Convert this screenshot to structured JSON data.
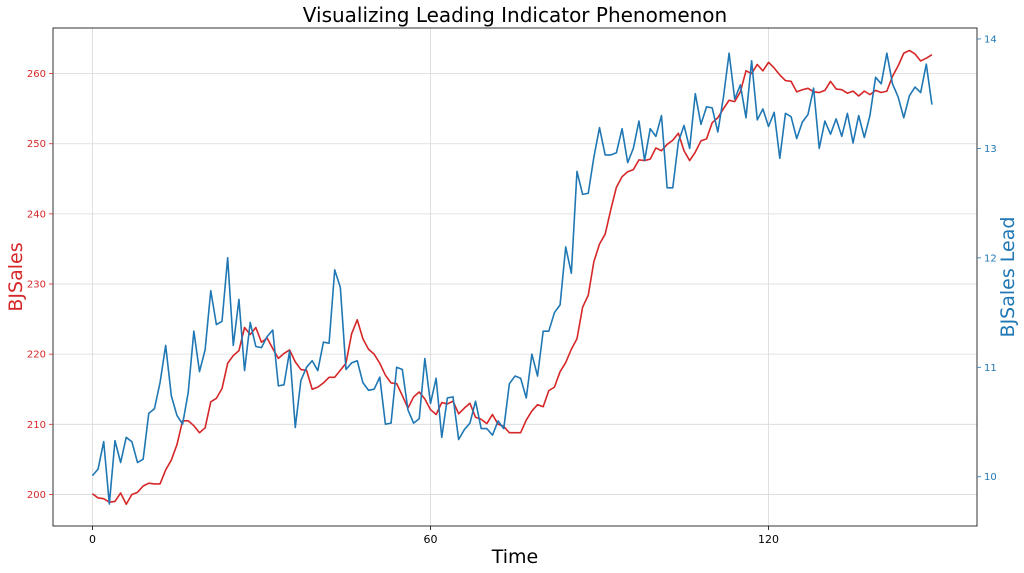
{
  "chart_data": {
    "type": "line",
    "title": "Visualizing Leading Indicator Phenomenon",
    "xlabel": "Time",
    "ylabel_left": "BJSales",
    "ylabel_right": "BJSales Lead",
    "xlim": [
      -7,
      157
    ],
    "ylim_left": [
      195.5,
      266.5
    ],
    "ylim_right": [
      9.55,
      14.1
    ],
    "x_ticks": [
      0,
      60,
      120
    ],
    "y_ticks_left": [
      200,
      210,
      220,
      230,
      240,
      250,
      260
    ],
    "y_ticks_right": [
      10,
      11,
      12,
      13,
      14
    ],
    "grid": true,
    "colors": {
      "left": "#d62728",
      "right": "#1f77b4"
    },
    "series": [
      {
        "name": "BJSales",
        "axis": "left",
        "values": [
          200.1,
          199.5,
          199.4,
          198.9,
          199.0,
          200.2,
          198.6,
          200.0,
          200.3,
          201.2,
          201.6,
          201.5,
          201.5,
          203.5,
          204.9,
          207.1,
          210.5,
          210.5,
          209.8,
          208.8,
          209.5,
          213.2,
          213.7,
          215.1,
          218.7,
          219.8,
          220.5,
          223.8,
          222.8,
          223.8,
          221.7,
          222.3,
          220.8,
          219.4,
          220.1,
          220.6,
          218.9,
          217.8,
          217.7,
          215.0,
          215.3,
          215.9,
          216.7,
          216.7,
          217.7,
          218.7,
          222.9,
          224.9,
          222.2,
          220.7,
          220.0,
          218.7,
          217.0,
          215.9,
          215.8,
          214.1,
          212.3,
          213.9,
          214.6,
          213.6,
          212.1,
          211.4,
          213.1,
          212.9,
          213.3,
          211.5,
          212.3,
          213.0,
          211.0,
          210.7,
          210.1,
          211.4,
          210.0,
          209.7,
          208.8,
          208.8,
          208.8,
          210.6,
          211.9,
          212.8,
          212.5,
          214.8,
          215.3,
          217.5,
          218.8,
          220.7,
          222.2,
          226.7,
          228.4,
          233.2,
          235.7,
          237.1,
          240.6,
          243.8,
          245.3,
          246.0,
          246.3,
          247.7,
          247.6,
          247.8,
          249.4,
          249.0,
          249.9,
          250.5,
          251.5,
          249.0,
          247.6,
          248.8,
          250.4,
          250.7,
          253.0,
          253.7,
          255.0,
          256.2,
          256.0,
          257.4,
          260.4,
          260.0,
          261.3,
          260.4,
          261.6,
          260.8,
          259.8,
          259.0,
          258.9,
          257.4,
          257.7,
          257.9,
          257.4,
          257.3,
          257.6,
          258.9,
          257.8,
          257.7,
          257.2,
          257.5,
          256.8,
          257.5,
          257.0,
          257.6,
          257.3,
          257.5,
          259.6,
          261.1,
          262.9,
          263.3,
          262.8,
          261.8,
          262.2,
          262.7
        ]
      },
      {
        "name": "BJSales Lead",
        "axis": "right",
        "values": [
          10.01,
          10.07,
          10.32,
          9.75,
          10.33,
          10.13,
          10.36,
          10.32,
          10.13,
          10.16,
          10.58,
          10.62,
          10.86,
          11.2,
          10.74,
          10.56,
          10.48,
          10.77,
          11.33,
          10.96,
          11.16,
          11.7,
          11.39,
          11.42,
          12.0,
          11.2,
          11.62,
          10.97,
          11.41,
          11.19,
          11.18,
          11.28,
          11.34,
          10.83,
          10.84,
          11.15,
          10.45,
          10.88,
          11.0,
          11.06,
          10.97,
          11.23,
          11.22,
          11.89,
          11.73,
          10.98,
          11.04,
          11.06,
          10.86,
          10.79,
          10.8,
          10.91,
          10.48,
          10.49,
          11.0,
          10.98,
          10.61,
          10.49,
          10.53,
          11.08,
          10.67,
          10.9,
          10.36,
          10.72,
          10.73,
          10.34,
          10.43,
          10.49,
          10.69,
          10.44,
          10.44,
          10.38,
          10.51,
          10.44,
          10.85,
          10.92,
          10.9,
          10.72,
          11.12,
          10.92,
          11.33,
          11.33,
          11.5,
          11.57,
          12.1,
          11.86,
          12.79,
          12.58,
          12.59,
          12.92,
          13.19,
          12.94,
          12.94,
          12.96,
          13.18,
          12.87,
          13.0,
          13.25,
          12.89,
          13.18,
          13.11,
          13.3,
          12.64,
          12.64,
          13.06,
          13.21,
          13.0,
          13.5,
          13.22,
          13.38,
          13.37,
          13.15,
          13.47,
          13.87,
          13.45,
          13.58,
          13.28,
          13.8,
          13.26,
          13.36,
          13.2,
          13.33,
          12.91,
          13.32,
          13.29,
          13.09,
          13.24,
          13.31,
          13.55,
          13.0,
          13.25,
          13.13,
          13.27,
          13.11,
          13.32,
          13.05,
          13.3,
          13.1,
          13.3,
          13.65,
          13.59,
          13.87,
          13.59,
          13.47,
          13.28,
          13.48,
          13.56,
          13.51,
          13.77,
          13.4
        ]
      }
    ]
  }
}
